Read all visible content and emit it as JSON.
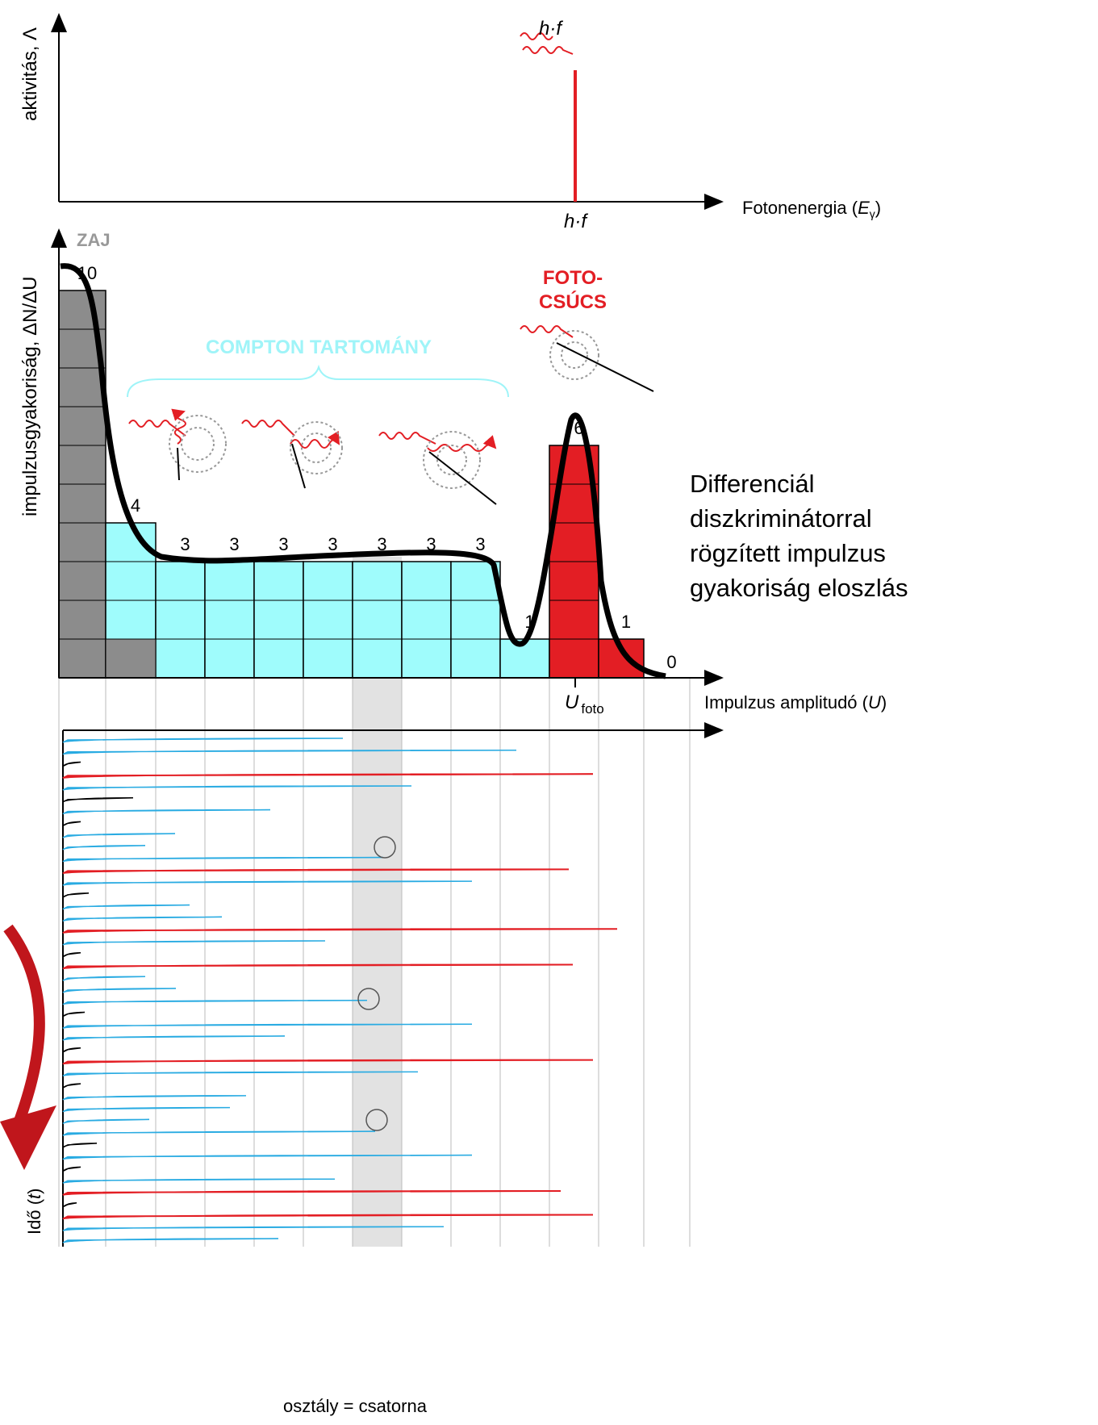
{
  "top_panel": {
    "y_label": "aktivitás, Λ",
    "peak_label": "h·f",
    "x_tick_label": "h·f",
    "x_label_main": "Fotonenergia (",
    "x_label_var": "E",
    "x_label_sub": "γ",
    "x_label_end": ")"
  },
  "histogram": {
    "y_label": "impulzusgyakoriság, ΔN/ΔU",
    "noise_label": "ZAJ",
    "photo_label_1": "FOTO-",
    "photo_label_2": "CSÚCS",
    "compton_label": "COMPTON TARTOMÁNY",
    "counts": [
      10,
      4,
      3,
      3,
      3,
      3,
      3,
      3,
      3,
      1,
      6,
      1,
      0
    ],
    "colors": [
      "#8c8c8c",
      "#9ffcfc",
      "#9ffcfc",
      "#9ffcfc",
      "#9ffcfc",
      "#9ffcfc",
      "#9ffcfc",
      "#9ffcfc",
      "#9ffcfc",
      "#9ffcfc",
      "#e31e24",
      "#e31e24",
      "#e31e24"
    ],
    "description": [
      "Differenciál",
      "diszkriminátorral",
      "rögzített impulzus",
      "gyakoriság eloszlás"
    ],
    "x_tick_main": "U",
    "x_tick_sub": "foto",
    "x_label_main": "Impulzus amplitudó (",
    "x_label_var": "U",
    "x_label_end": ")"
  },
  "pulses": {
    "y_label_main": "Idő (",
    "y_label_var": "t",
    "y_label_end": ")",
    "footer": "osztály = csatorna",
    "items": [
      {
        "color": "#29abe2",
        "length": 347
      },
      {
        "color": "#29abe2",
        "length": 562
      },
      {
        "color": "#000000",
        "length": 22
      },
      {
        "color": "#e31e24",
        "length": 657
      },
      {
        "color": "#29abe2",
        "length": 432
      },
      {
        "color": "#000000",
        "length": 87
      },
      {
        "color": "#29abe2",
        "length": 257
      },
      {
        "color": "#000000",
        "length": 22
      },
      {
        "color": "#29abe2",
        "length": 139
      },
      {
        "color": "#29abe2",
        "length": 102
      },
      {
        "color": "#29abe2",
        "length": 397
      },
      {
        "color": "#e31e24",
        "length": 627
      },
      {
        "color": "#29abe2",
        "length": 507
      },
      {
        "color": "#000000",
        "length": 32
      },
      {
        "color": "#29abe2",
        "length": 157
      },
      {
        "color": "#29abe2",
        "length": 197
      },
      {
        "color": "#e31e24",
        "length": 687
      },
      {
        "color": "#29abe2",
        "length": 325
      },
      {
        "color": "#000000",
        "length": 22
      },
      {
        "color": "#e31e24",
        "length": 632
      },
      {
        "color": "#29abe2",
        "length": 102
      },
      {
        "color": "#29abe2",
        "length": 140
      },
      {
        "color": "#29abe2",
        "length": 377
      },
      {
        "color": "#000000",
        "length": 27
      },
      {
        "color": "#29abe2",
        "length": 507
      },
      {
        "color": "#29abe2",
        "length": 275
      },
      {
        "color": "#000000",
        "length": 22
      },
      {
        "color": "#e31e24",
        "length": 657
      },
      {
        "color": "#29abe2",
        "length": 440
      },
      {
        "color": "#000000",
        "length": 22
      },
      {
        "color": "#29abe2",
        "length": 227
      },
      {
        "color": "#29abe2",
        "length": 207
      },
      {
        "color": "#29abe2",
        "length": 107
      },
      {
        "color": "#29abe2",
        "length": 387
      },
      {
        "color": "#000000",
        "length": 42
      },
      {
        "color": "#29abe2",
        "length": 507
      },
      {
        "color": "#000000",
        "length": 22
      },
      {
        "color": "#29abe2",
        "length": 337
      },
      {
        "color": "#e31e24",
        "length": 617
      },
      {
        "color": "#000000",
        "length": 17
      },
      {
        "color": "#e31e24",
        "length": 657
      },
      {
        "color": "#29abe2",
        "length": 472
      },
      {
        "color": "#29abe2",
        "length": 267
      }
    ]
  }
}
